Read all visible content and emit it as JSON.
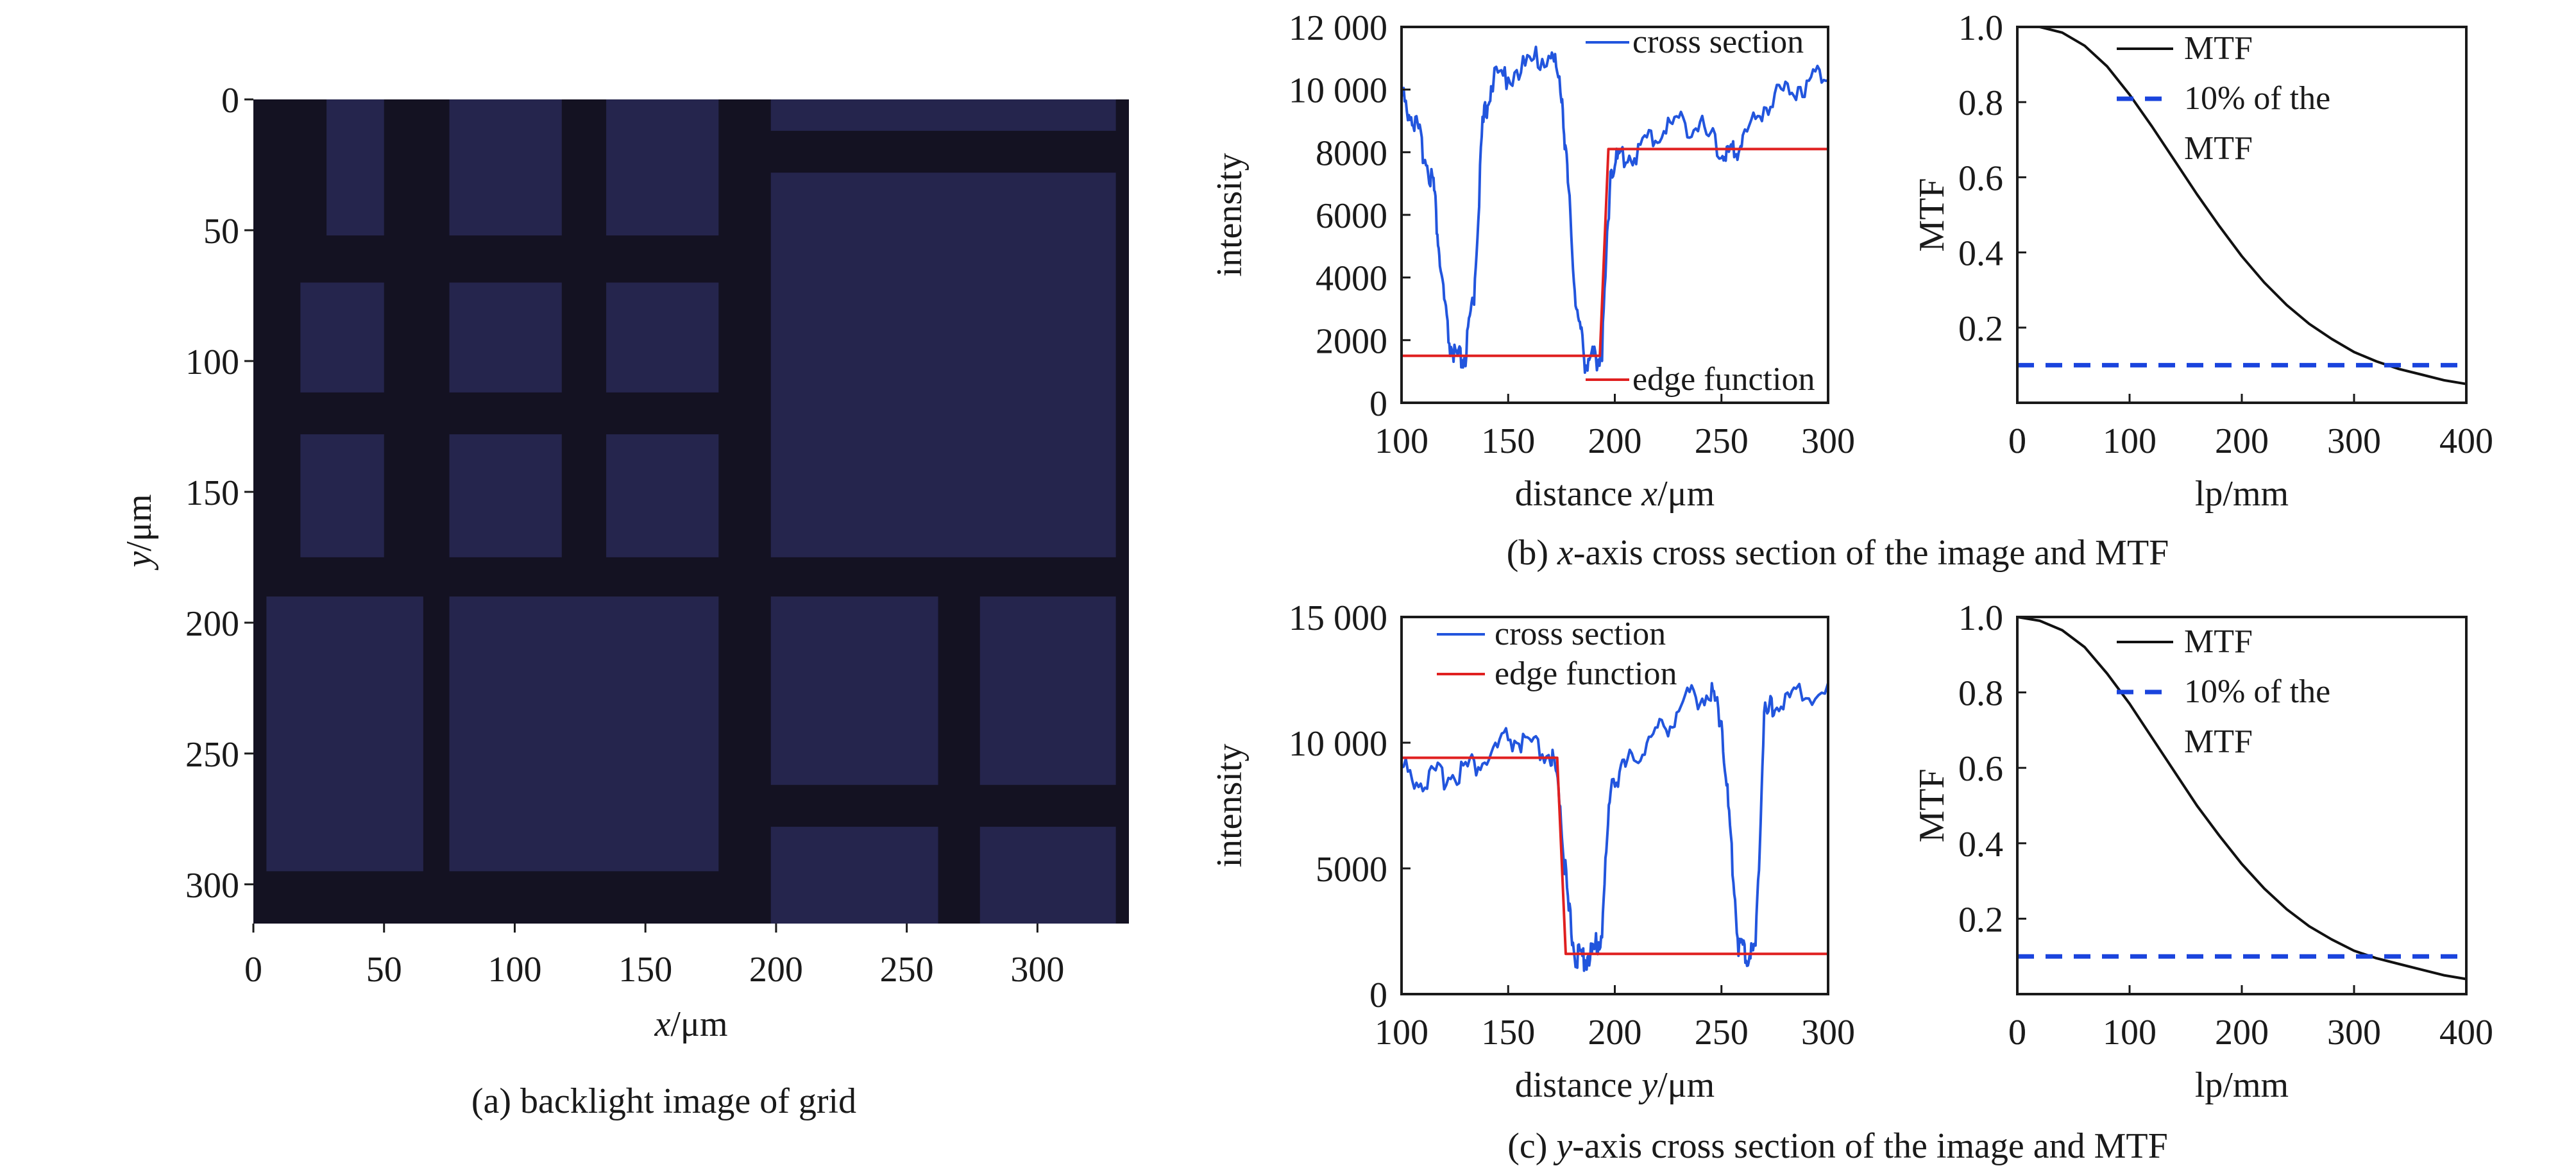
{
  "captions": {
    "a": "(a) backlight image of grid",
    "b_prefix": "(b) ",
    "b_var": "x",
    "b_suffix": "-axis cross section of the image and MTF",
    "c_prefix": "(c) ",
    "c_var": "y",
    "c_suffix": "-axis cross section of the image and MTF"
  },
  "colors": {
    "cross_section": "#2255dd",
    "edge_function": "#e02020",
    "mtf": "#111111",
    "threshold": "#1a44dd",
    "grid_bg": "#141222",
    "grid_cell": "#262750"
  },
  "chart_data": [
    {
      "id": "a",
      "type": "heatmap",
      "description_key": "backlight image of grid",
      "xlabel_var": "x",
      "xlabel_unit": "/μm",
      "ylabel_var": "y",
      "ylabel_unit": "/μm",
      "xlim": [
        0,
        335
      ],
      "ylim": [
        0,
        315
      ],
      "y_inverted": true,
      "xticks": [
        0,
        50,
        100,
        150,
        200,
        250,
        300
      ],
      "yticks": [
        0,
        50,
        100,
        150,
        200,
        250,
        300
      ],
      "bright_cells": [
        [
          28,
          0,
          50,
          52
        ],
        [
          75,
          0,
          118,
          52
        ],
        [
          135,
          0,
          178,
          52
        ],
        [
          198,
          0,
          330,
          12
        ],
        [
          18,
          70,
          50,
          112
        ],
        [
          75,
          70,
          118,
          112
        ],
        [
          135,
          70,
          178,
          112
        ],
        [
          18,
          128,
          50,
          175
        ],
        [
          75,
          128,
          118,
          175
        ],
        [
          135,
          128,
          178,
          175
        ],
        [
          198,
          28,
          330,
          175
        ],
        [
          5,
          190,
          65,
          295
        ],
        [
          75,
          190,
          178,
          295
        ],
        [
          198,
          190,
          262,
          262
        ],
        [
          278,
          190,
          330,
          262
        ],
        [
          198,
          278,
          262,
          315
        ],
        [
          278,
          278,
          330,
          315
        ]
      ]
    },
    {
      "id": "b1",
      "type": "line",
      "xlabel_prefix": "distance ",
      "xlabel_var": "x",
      "xlabel_unit": "/μm",
      "ylabel": "intensity",
      "xlim": [
        100,
        300
      ],
      "ylim": [
        0,
        12000
      ],
      "xticks": [
        100,
        150,
        200,
        250,
        300
      ],
      "yticks": [
        0,
        2000,
        4000,
        6000,
        8000,
        10000,
        12000
      ],
      "ytick_labels": [
        "0",
        "2000",
        "4000",
        "6000",
        "8000",
        "10 000",
        "12 000"
      ],
      "series": [
        {
          "name": "cross section",
          "x": [
            100,
            105,
            110,
            115,
            118,
            122,
            126,
            130,
            134,
            138,
            142,
            150,
            160,
            170,
            175,
            178,
            182,
            186,
            190,
            194,
            198,
            202,
            210,
            220,
            230,
            240,
            250,
            255,
            260,
            270,
            280,
            290,
            300
          ],
          "y": [
            9800,
            9200,
            8100,
            7000,
            4500,
            2000,
            1300,
            1500,
            3500,
            8800,
            10200,
            10500,
            10800,
            11200,
            10000,
            7000,
            3000,
            1400,
            1400,
            1600,
            7500,
            7800,
            8000,
            8600,
            9000,
            8800,
            8000,
            7900,
            8400,
            9500,
            10000,
            10200,
            10700
          ]
        },
        {
          "name": "edge function",
          "x": [
            100,
            193,
            197,
            300
          ],
          "y": [
            1500,
            1500,
            8100,
            8100
          ]
        }
      ]
    },
    {
      "id": "b2",
      "type": "line",
      "xlabel": "lp/mm",
      "ylabel": "MTF",
      "xlim": [
        0,
        400
      ],
      "ylim": [
        0,
        1.0
      ],
      "xticks": [
        0,
        100,
        200,
        300,
        400
      ],
      "yticks": [
        0.2,
        0.4,
        0.6,
        0.8,
        1.0
      ],
      "ytick_labels": [
        "0.2",
        "0.4",
        "0.6",
        "0.8",
        "1.0"
      ],
      "series": [
        {
          "name": "MTF",
          "x": [
            20,
            40,
            60,
            80,
            100,
            120,
            140,
            160,
            180,
            200,
            220,
            240,
            260,
            280,
            300,
            320,
            340,
            360,
            380,
            400
          ],
          "y": [
            1.0,
            0.985,
            0.95,
            0.895,
            0.82,
            0.735,
            0.645,
            0.555,
            0.47,
            0.39,
            0.32,
            0.26,
            0.21,
            0.17,
            0.135,
            0.11,
            0.09,
            0.075,
            0.06,
            0.05
          ]
        },
        {
          "name": "10% of the MTF",
          "x": [
            0,
            400
          ],
          "y": [
            0.1,
            0.1
          ],
          "dashed": true
        }
      ],
      "legend": [
        "MTF",
        "10% of the",
        "MTF"
      ]
    },
    {
      "id": "c1",
      "type": "line",
      "xlabel_prefix": "distance ",
      "xlabel_var": "y",
      "xlabel_unit": "/μm",
      "ylabel": "intensity",
      "xlim": [
        100,
        300
      ],
      "ylim": [
        0,
        15000
      ],
      "xticks": [
        100,
        150,
        200,
        250,
        300
      ],
      "yticks": [
        0,
        5000,
        10000,
        15000
      ],
      "ytick_labels": [
        "0",
        "5000",
        "10 000",
        "15 000"
      ],
      "series": [
        {
          "name": "cross section",
          "x": [
            100,
            110,
            120,
            130,
            140,
            150,
            160,
            170,
            174,
            178,
            182,
            186,
            190,
            194,
            198,
            205,
            215,
            225,
            235,
            245,
            250,
            254,
            258,
            262,
            266,
            270,
            275,
            285,
            300
          ],
          "y": [
            9000,
            8500,
            8700,
            9000,
            9300,
            10200,
            9800,
            9500,
            8000,
            3500,
            1400,
            1500,
            1600,
            2500,
            8500,
            9000,
            10000,
            10800,
            11800,
            12000,
            11000,
            6500,
            2000,
            1500,
            1800,
            11000,
            11500,
            11800,
            12200
          ]
        },
        {
          "name": "edge function",
          "x": [
            100,
            173,
            177,
            300
          ],
          "y": [
            9400,
            9400,
            1600,
            1600
          ]
        }
      ]
    },
    {
      "id": "c2",
      "type": "line",
      "xlabel": "lp/mm",
      "ylabel": "MTF",
      "xlim": [
        0,
        400
      ],
      "ylim": [
        0,
        1.0
      ],
      "xticks": [
        0,
        100,
        200,
        300,
        400
      ],
      "yticks": [
        0.2,
        0.4,
        0.6,
        0.8,
        1.0
      ],
      "ytick_labels": [
        "0.2",
        "0.4",
        "0.6",
        "0.8",
        "1.0"
      ],
      "series": [
        {
          "name": "MTF",
          "x": [
            0,
            20,
            40,
            60,
            80,
            100,
            120,
            140,
            160,
            180,
            200,
            220,
            240,
            260,
            280,
            300,
            320,
            340,
            360,
            380,
            400
          ],
          "y": [
            1.0,
            0.99,
            0.965,
            0.92,
            0.85,
            0.77,
            0.68,
            0.59,
            0.5,
            0.42,
            0.345,
            0.28,
            0.225,
            0.18,
            0.145,
            0.115,
            0.095,
            0.08,
            0.065,
            0.05,
            0.04
          ]
        },
        {
          "name": "10% of the MTF",
          "x": [
            0,
            400
          ],
          "y": [
            0.1,
            0.1
          ],
          "dashed": true
        }
      ],
      "legend": [
        "MTF",
        "10% of the",
        "MTF"
      ]
    }
  ]
}
